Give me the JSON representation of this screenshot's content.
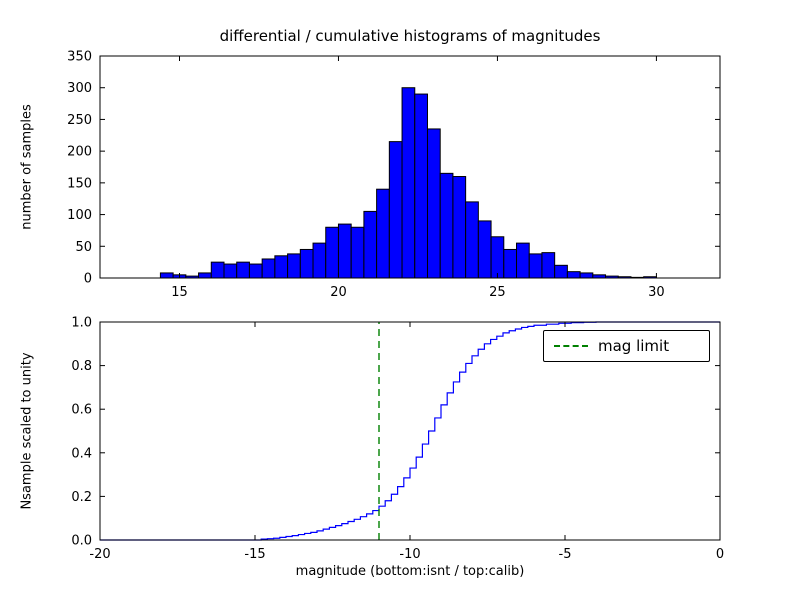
{
  "figure": {
    "title": "differential / cumulative histograms of magnitudes",
    "background": "#ffffff"
  },
  "chart_data": [
    {
      "type": "bar",
      "subtype": "differential-histogram",
      "title": "differential / cumulative histograms of magnitudes",
      "xlabel": "",
      "ylabel": "number of samples",
      "xlim": [
        12.5,
        32
      ],
      "ylim": [
        0,
        350
      ],
      "xticks": [
        15,
        20,
        25,
        30
      ],
      "yticks": [
        0,
        50,
        100,
        150,
        200,
        250,
        300,
        350
      ],
      "grid": false,
      "bar_color": "#0000ff",
      "bar_edge_color": "#000000",
      "bin_start": 14.4,
      "bin_width": 0.4,
      "counts": [
        8,
        5,
        3,
        8,
        25,
        22,
        25,
        22,
        30,
        35,
        38,
        45,
        55,
        80,
        85,
        80,
        105,
        140,
        215,
        300,
        290,
        235,
        165,
        160,
        120,
        90,
        65,
        45,
        55,
        38,
        40,
        20,
        10,
        8,
        5,
        3,
        2,
        1,
        2
      ],
      "total_samples": 2680
    },
    {
      "type": "line",
      "subtype": "cumulative-step",
      "title": "",
      "xlabel": "magnitude (bottom:isnt / top:calib)",
      "ylabel": "Nsample scaled to unity",
      "xlim": [
        -20,
        0
      ],
      "ylim": [
        0,
        1
      ],
      "xticks": [
        -20,
        -15,
        -10,
        -5,
        0
      ],
      "yticks": [
        0.0,
        0.2,
        0.4,
        0.6,
        0.8,
        1.0
      ],
      "grid": false,
      "line_color": "#0000ff",
      "steps": [
        [
          -20,
          0
        ],
        [
          -15,
          0
        ],
        [
          -14.8,
          0.004
        ],
        [
          -14.6,
          0.006
        ],
        [
          -14.4,
          0.008
        ],
        [
          -14.2,
          0.012
        ],
        [
          -14.0,
          0.016
        ],
        [
          -13.8,
          0.02
        ],
        [
          -13.6,
          0.025
        ],
        [
          -13.4,
          0.03
        ],
        [
          -13.2,
          0.035
        ],
        [
          -13.0,
          0.042
        ],
        [
          -12.8,
          0.05
        ],
        [
          -12.6,
          0.058
        ],
        [
          -12.4,
          0.066
        ],
        [
          -12.2,
          0.075
        ],
        [
          -12.0,
          0.085
        ],
        [
          -11.8,
          0.095
        ],
        [
          -11.6,
          0.107
        ],
        [
          -11.4,
          0.12
        ],
        [
          -11.2,
          0.135
        ],
        [
          -11.0,
          0.155
        ],
        [
          -10.8,
          0.18
        ],
        [
          -10.6,
          0.21
        ],
        [
          -10.4,
          0.245
        ],
        [
          -10.2,
          0.285
        ],
        [
          -10.0,
          0.33
        ],
        [
          -9.8,
          0.38
        ],
        [
          -9.6,
          0.44
        ],
        [
          -9.4,
          0.5
        ],
        [
          -9.2,
          0.56
        ],
        [
          -9.0,
          0.62
        ],
        [
          -8.8,
          0.675
        ],
        [
          -8.6,
          0.725
        ],
        [
          -8.4,
          0.77
        ],
        [
          -8.2,
          0.81
        ],
        [
          -8.0,
          0.845
        ],
        [
          -7.8,
          0.875
        ],
        [
          -7.6,
          0.9
        ],
        [
          -7.4,
          0.92
        ],
        [
          -7.2,
          0.935
        ],
        [
          -7.0,
          0.95
        ],
        [
          -6.8,
          0.96
        ],
        [
          -6.6,
          0.968
        ],
        [
          -6.4,
          0.975
        ],
        [
          -6.2,
          0.98
        ],
        [
          -6.0,
          0.985
        ],
        [
          -5.6,
          0.99
        ],
        [
          -5.2,
          0.994
        ],
        [
          -4.8,
          0.997
        ],
        [
          -4.4,
          0.999
        ],
        [
          -4.0,
          1.0
        ],
        [
          0,
          1.0
        ]
      ],
      "vline": {
        "x": -11,
        "color": "#008000",
        "style": "dashed",
        "label": "mag limit"
      },
      "legend_position": "upper right"
    }
  ]
}
